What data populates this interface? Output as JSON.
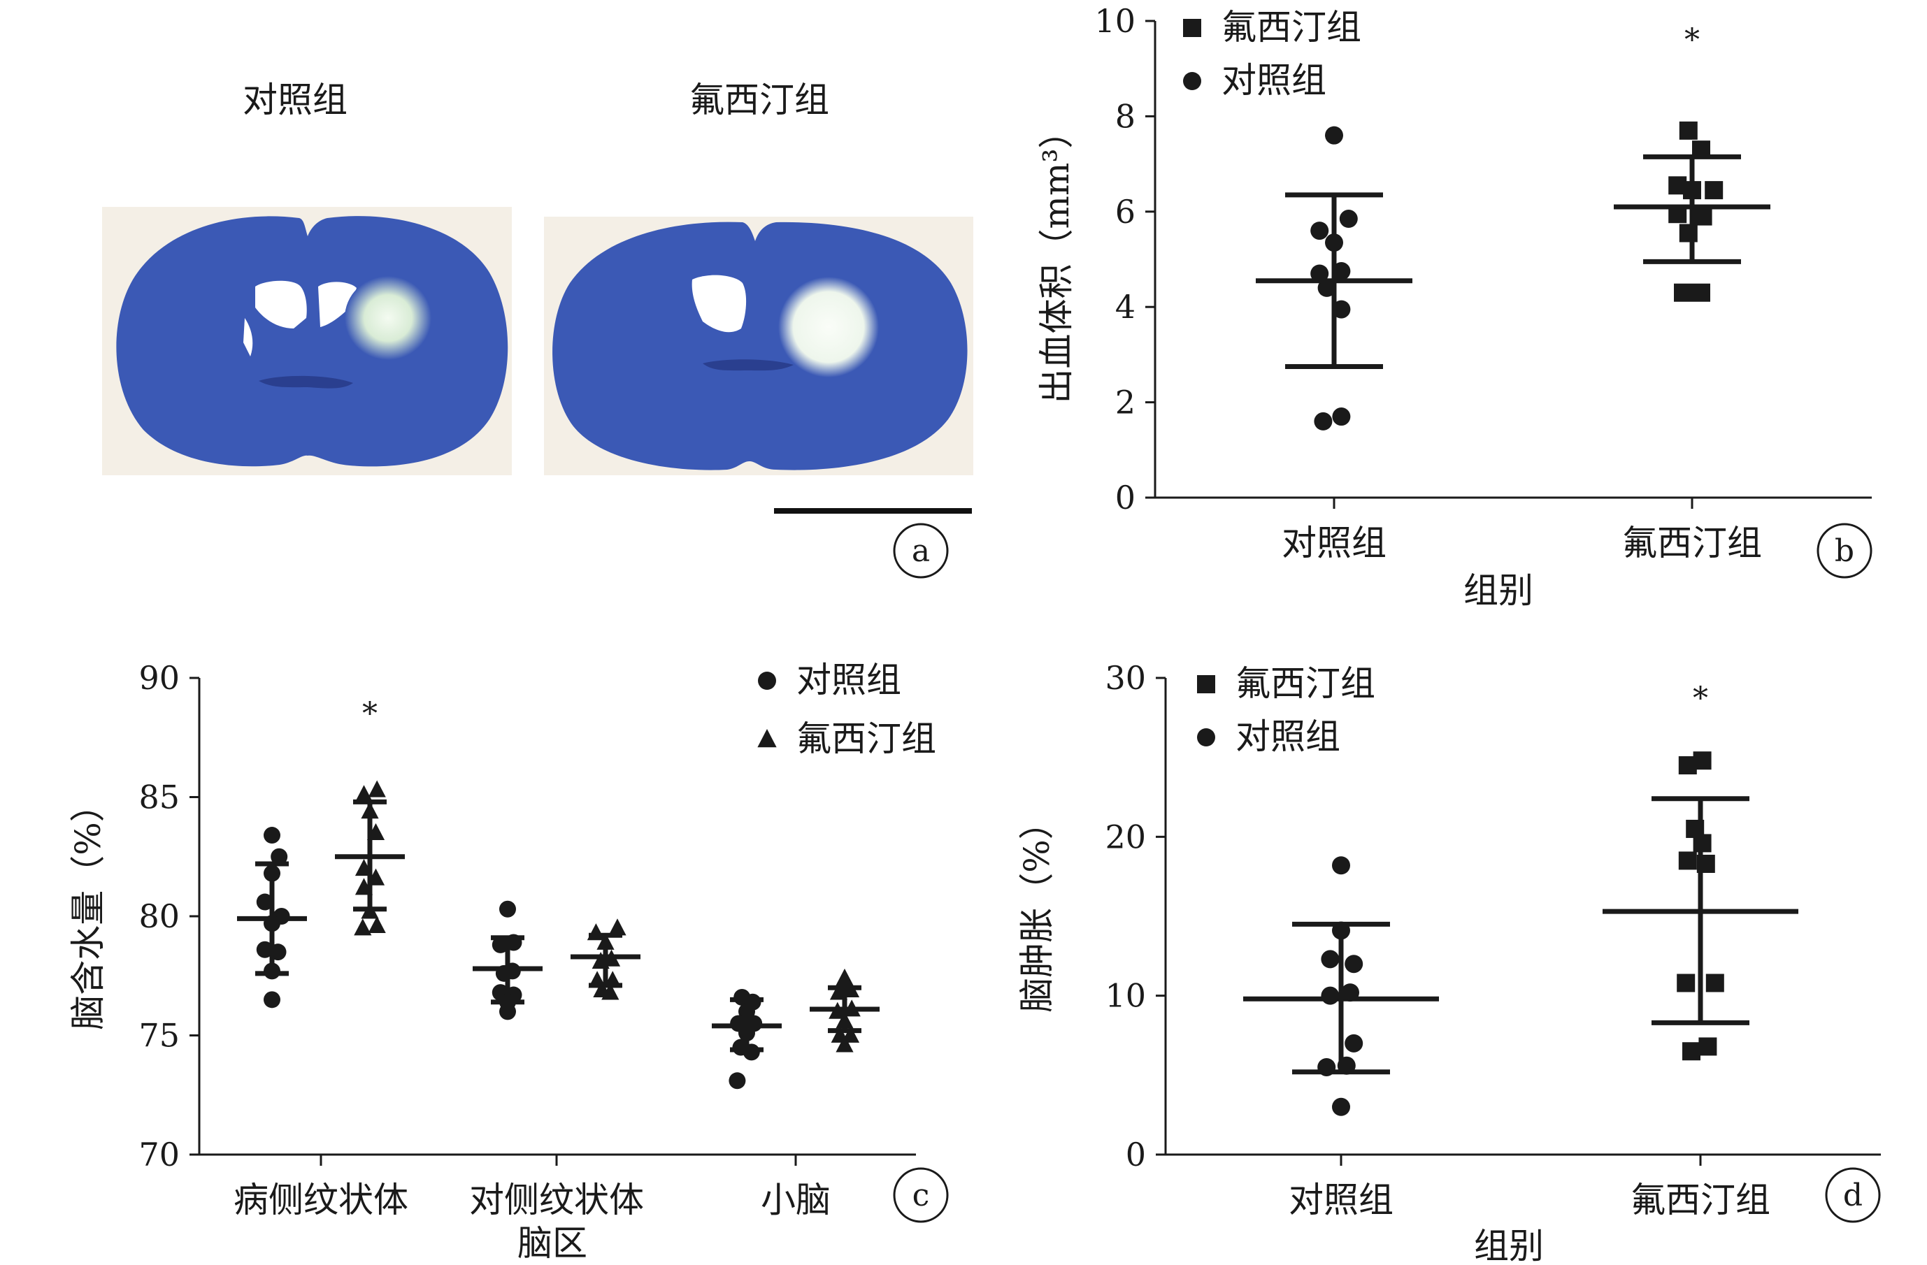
{
  "panel_a": {
    "label": "a",
    "images": [
      {
        "caption": "对照组"
      },
      {
        "caption": "氟西汀组"
      }
    ],
    "colors": {
      "tissue": "#3b59b5",
      "tissue_dark": "#2a3f8f",
      "lesion": "#e6f2e4",
      "background": "#f4efe6"
    }
  },
  "chart_data": [
    {
      "panel": "b",
      "type": "scatter",
      "ylabel": "出血体积（mm³）",
      "xlabel": "组别",
      "categories": [
        "对照组",
        "氟西汀组"
      ],
      "ylim": [
        0,
        10
      ],
      "yticks": [
        "0",
        "2",
        "4",
        "6",
        "8",
        "10"
      ],
      "legend": [
        "氟西汀组",
        "对照组"
      ],
      "legend_position": "top-left",
      "series": [
        {
          "name": "对照组",
          "marker": "circle",
          "mean": 4.55,
          "sd_low": 2.75,
          "sd_high": 6.35,
          "points": [
            [
              0.0,
              7.6
            ],
            [
              -0.08,
              5.6
            ],
            [
              0.08,
              5.85
            ],
            [
              0.0,
              5.35
            ],
            [
              -0.08,
              4.7
            ],
            [
              0.04,
              4.75
            ],
            [
              -0.04,
              4.4
            ],
            [
              0.04,
              3.95
            ],
            [
              -0.06,
              1.6
            ],
            [
              0.04,
              1.7
            ]
          ]
        },
        {
          "name": "氟西汀组",
          "marker": "square",
          "mean": 6.1,
          "sd_low": 4.95,
          "sd_high": 7.15,
          "points": [
            [
              -0.02,
              7.7
            ],
            [
              0.05,
              7.3
            ],
            [
              -0.08,
              6.55
            ],
            [
              0.0,
              6.45
            ],
            [
              0.12,
              6.45
            ],
            [
              -0.08,
              5.95
            ],
            [
              0.06,
              5.9
            ],
            [
              -0.02,
              5.55
            ],
            [
              -0.05,
              4.3
            ],
            [
              0.05,
              4.3
            ]
          ]
        }
      ],
      "annotation": "*",
      "panel_label": "b"
    },
    {
      "panel": "c",
      "type": "scatter",
      "ylabel": "脑含水量（%）",
      "xlabel": "脑区",
      "categories": [
        "病侧纹状体",
        "对侧纹状体",
        "小脑"
      ],
      "ylim": [
        70,
        90
      ],
      "yticks": [
        "70",
        "75",
        "80",
        "85",
        "90"
      ],
      "legend": [
        "对照组",
        "氟西汀组"
      ],
      "legend_position": "top-right",
      "series": [
        {
          "name": "对照组",
          "marker": "circle",
          "groups": [
            {
              "mean": 79.9,
              "sd_low": 77.6,
              "sd_high": 82.2,
              "points": [
                [
                  0.0,
                  83.4
                ],
                [
                  0.06,
                  82.5
                ],
                [
                  0.0,
                  81.8
                ],
                [
                  -0.06,
                  80.6
                ],
                [
                  0.08,
                  80.0
                ],
                [
                  0.0,
                  79.7
                ],
                [
                  -0.06,
                  78.6
                ],
                [
                  0.05,
                  78.5
                ],
                [
                  0.0,
                  77.7
                ],
                [
                  0.0,
                  76.5
                ]
              ]
            },
            {
              "mean": 77.8,
              "sd_low": 76.4,
              "sd_high": 79.1,
              "points": [
                [
                  0.0,
                  80.3
                ],
                [
                  -0.06,
                  78.8
                ],
                [
                  0.05,
                  78.9
                ],
                [
                  -0.03,
                  77.6
                ],
                [
                  0.04,
                  77.7
                ],
                [
                  -0.06,
                  76.8
                ],
                [
                  0.05,
                  76.7
                ],
                [
                  0.0,
                  76.4
                ],
                [
                  0.0,
                  76.0
                ]
              ]
            },
            {
              "mean": 75.4,
              "sd_low": 74.4,
              "sd_high": 76.5,
              "points": [
                [
                  -0.04,
                  76.6
                ],
                [
                  0.05,
                  76.4
                ],
                [
                  0.0,
                  76.0
                ],
                [
                  -0.07,
                  75.5
                ],
                [
                  0.06,
                  75.5
                ],
                [
                  -0.05,
                  74.5
                ],
                [
                  0.04,
                  74.3
                ],
                [
                  0.0,
                  75.1
                ],
                [
                  -0.08,
                  73.1
                ]
              ]
            }
          ]
        },
        {
          "name": "氟西汀组",
          "marker": "triangle",
          "groups": [
            {
              "mean": 82.5,
              "sd_low": 80.3,
              "sd_high": 84.8,
              "points": [
                [
                  -0.05,
                  85.1
                ],
                [
                  0.06,
                  85.3
                ],
                [
                  0.0,
                  84.4
                ],
                [
                  0.05,
                  83.5
                ],
                [
                  -0.05,
                  82.0
                ],
                [
                  0.05,
                  81.6
                ],
                [
                  -0.05,
                  81.2
                ],
                [
                  0.0,
                  80.2
                ],
                [
                  -0.06,
                  79.5
                ],
                [
                  0.06,
                  79.6
                ]
              ]
            },
            {
              "mean": 78.3,
              "sd_low": 77.1,
              "sd_high": 79.2,
              "points": [
                [
                  -0.08,
                  79.3
                ],
                [
                  0.1,
                  79.5
                ],
                [
                  0.0,
                  78.9
                ],
                [
                  -0.04,
                  78.1
                ],
                [
                  0.05,
                  78.2
                ],
                [
                  -0.07,
                  77.3
                ],
                [
                  0.06,
                  77.3
                ],
                [
                  -0.03,
                  76.9
                ],
                [
                  0.04,
                  76.8
                ]
              ]
            },
            {
              "mean": 76.1,
              "sd_low": 75.2,
              "sd_high": 77.0,
              "points": [
                [
                  0.0,
                  77.4
                ],
                [
                  -0.05,
                  76.8
                ],
                [
                  0.05,
                  76.9
                ],
                [
                  -0.06,
                  76.0
                ],
                [
                  0.06,
                  76.1
                ],
                [
                  0.0,
                  75.6
                ],
                [
                  -0.04,
                  75.0
                ],
                [
                  0.05,
                  75.0
                ],
                [
                  0.0,
                  74.6
                ]
              ]
            }
          ]
        }
      ],
      "annotation": "*",
      "panel_label": "c"
    },
    {
      "panel": "d",
      "type": "scatter",
      "ylabel": "脑肿胀（%）",
      "xlabel": "组别",
      "categories": [
        "对照组",
        "氟西汀组"
      ],
      "ylim": [
        0,
        30
      ],
      "yticks": [
        "0",
        "10",
        "20",
        "30"
      ],
      "legend": [
        "氟西汀组",
        "对照组"
      ],
      "legend_position": "top-left",
      "series": [
        {
          "name": "对照组",
          "marker": "circle",
          "mean": 9.8,
          "sd_low": 5.2,
          "sd_high": 14.5,
          "points": [
            [
              0.0,
              18.2
            ],
            [
              0.0,
              14.1
            ],
            [
              -0.06,
              12.3
            ],
            [
              0.07,
              12.0
            ],
            [
              -0.06,
              10.0
            ],
            [
              0.05,
              10.2
            ],
            [
              0.07,
              7.0
            ],
            [
              -0.08,
              5.5
            ],
            [
              0.03,
              5.6
            ],
            [
              0.0,
              3.0
            ]
          ]
        },
        {
          "name": "氟西汀组",
          "marker": "square",
          "mean": 15.3,
          "sd_low": 8.3,
          "sd_high": 22.4,
          "points": [
            [
              -0.07,
              24.5
            ],
            [
              0.01,
              24.8
            ],
            [
              -0.03,
              20.5
            ],
            [
              0.01,
              19.6
            ],
            [
              -0.07,
              18.5
            ],
            [
              0.03,
              18.3
            ],
            [
              0.08,
              10.8
            ],
            [
              -0.08,
              10.8
            ],
            [
              -0.05,
              6.5
            ],
            [
              0.04,
              6.8
            ]
          ]
        }
      ],
      "annotation": "*",
      "panel_label": "d"
    }
  ]
}
